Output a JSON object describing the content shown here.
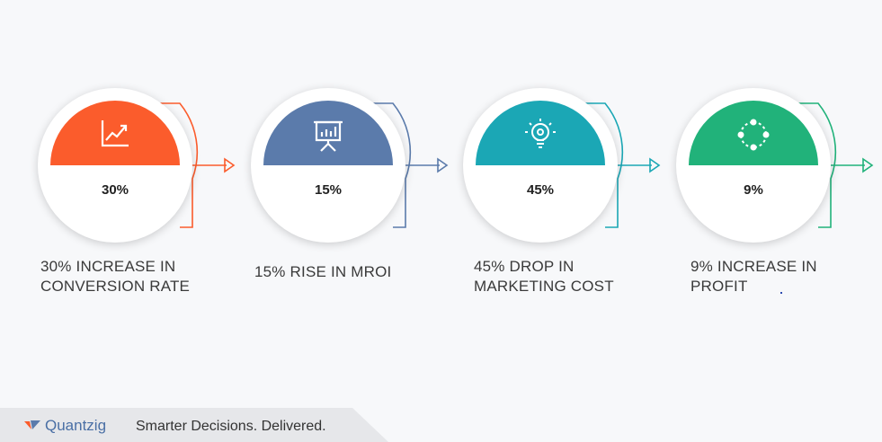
{
  "colors": {
    "step1": "#fb5c2c",
    "step2": "#5b7bab",
    "step3": "#1ba7b5",
    "step4": "#21b27a"
  },
  "steps": [
    {
      "percent": "30%",
      "label": "30% INCREASE IN\nCONVERSION RATE",
      "icon": "line-chart-icon"
    },
    {
      "percent": "15%",
      "label": "15% RISE IN MROI",
      "icon": "presentation-board-icon"
    },
    {
      "percent": "45%",
      "label": "45% DROP IN\nMARKETING COST",
      "icon": "lightbulb-gear-icon"
    },
    {
      "percent": "9%",
      "label": "9% INCREASE IN\nPROFIT",
      "icon": "cycle-icon"
    }
  ],
  "footer": {
    "brand": "Quantzig",
    "tagline": "Smarter Decisions. Delivered."
  }
}
